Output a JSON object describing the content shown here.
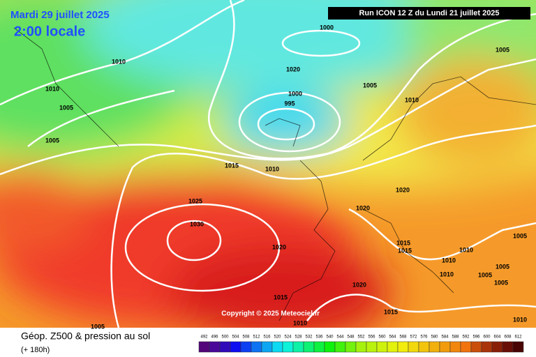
{
  "header": {
    "date": "Mardi 29 juillet 2025",
    "time": "2:00 locale",
    "run": "Run ICON 12 Z du Lundi 21 juillet 2025"
  },
  "copyright": "Copyright © 2025 Meteociel.fr",
  "footer": {
    "title": "Géop. Z500 & pression au sol",
    "lead": "(+ 180h)"
  },
  "isobar_labels": [
    1000,
    1005,
    1010,
    1010,
    1005,
    1005,
    1000,
    995,
    1005,
    1010,
    1015,
    1010,
    1025,
    1030,
    1020,
    1020,
    1020,
    1015,
    1015,
    1010,
    1010,
    1010,
    1005,
    1005,
    1005,
    1005,
    1020,
    1015,
    1015,
    1010,
    1010,
    1005,
    1020
  ],
  "colorbar": {
    "ticks": [
      492,
      496,
      500,
      504,
      508,
      512,
      516,
      520,
      524,
      528,
      532,
      536,
      540,
      544,
      548,
      552,
      556,
      560,
      564,
      568,
      572,
      576,
      580,
      584,
      588,
      592,
      596,
      600,
      604,
      608,
      612
    ]
  }
}
